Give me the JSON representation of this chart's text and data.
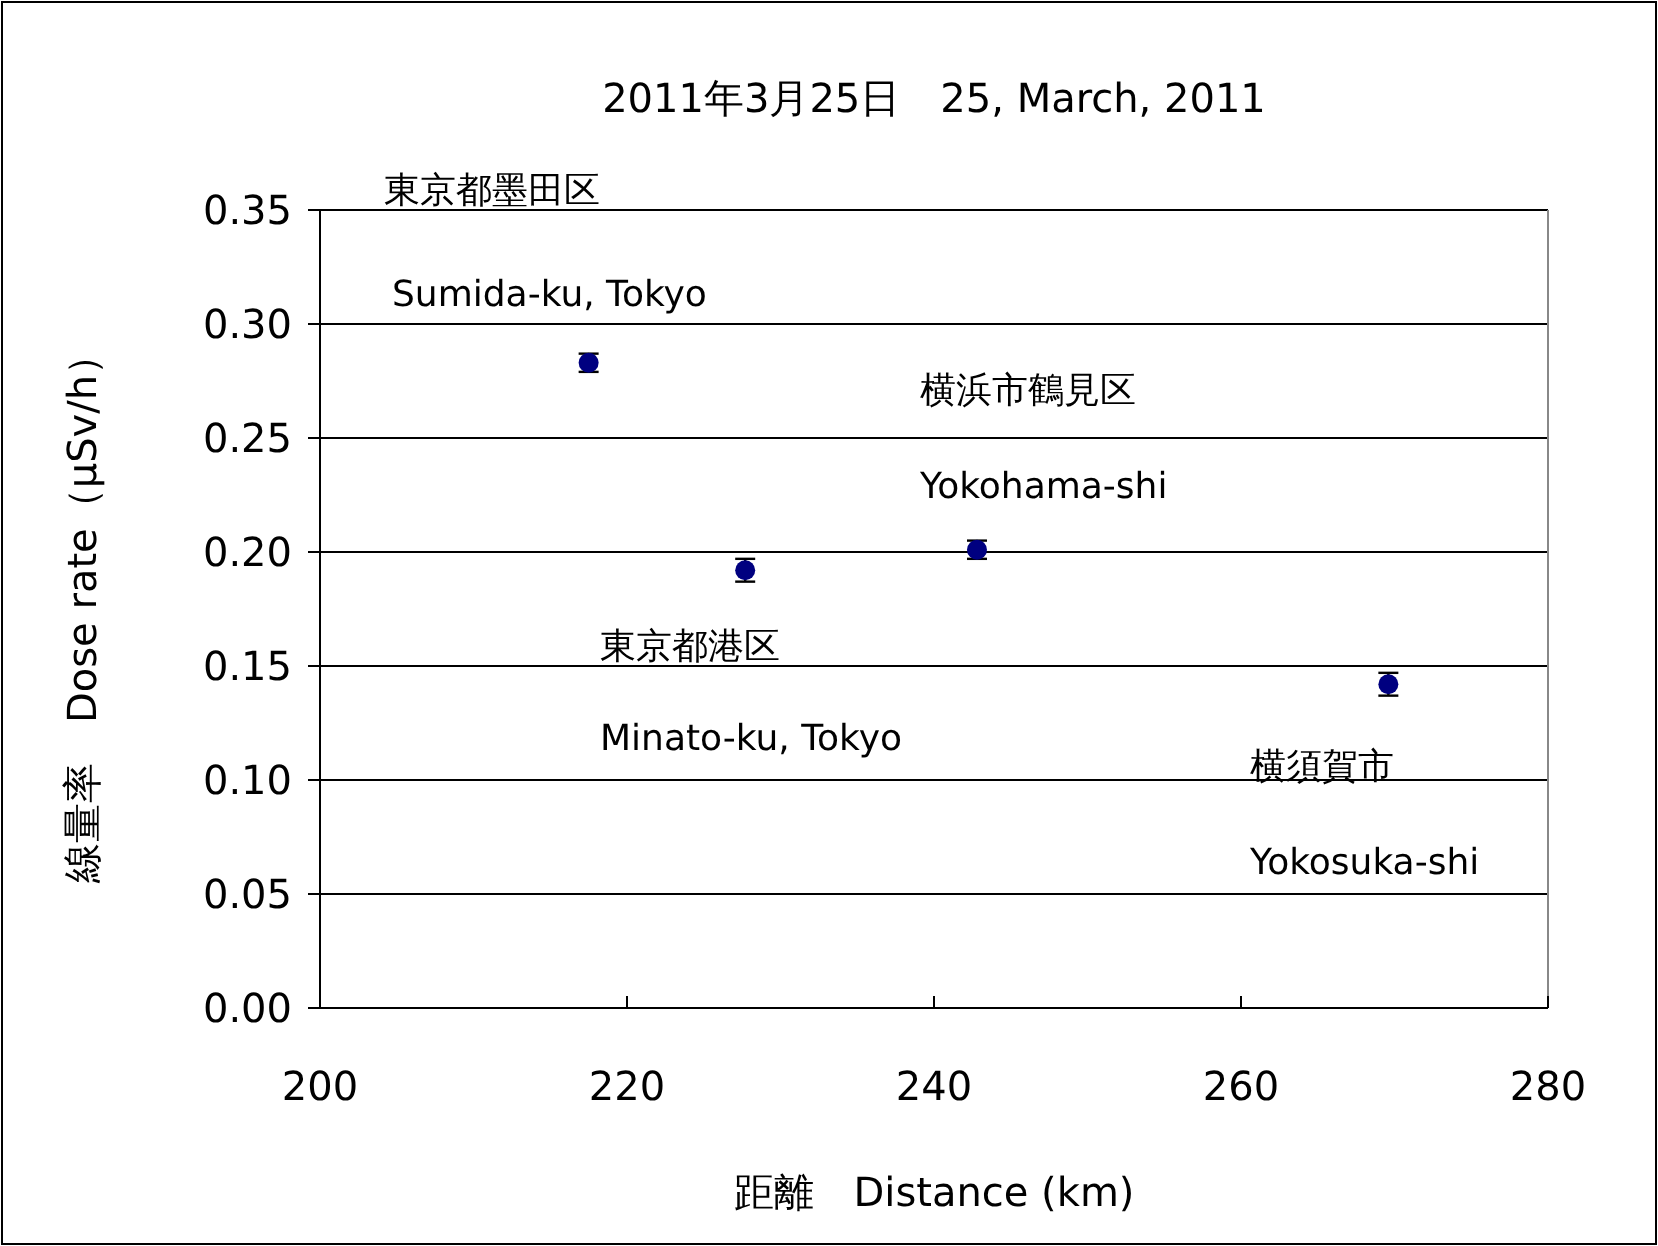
{
  "chart_data": {
    "type": "scatter",
    "title": "2011年3月25日　25, March, 2011",
    "xlabel": "距離　Distance (km)",
    "ylabel": "線量率　Dose rate（μSv/h）",
    "x": [
      217.5,
      227.7,
      242.8,
      269.6
    ],
    "values": [
      0.283,
      0.192,
      0.201,
      0.142
    ],
    "errors": [
      0.004,
      0.005,
      0.004,
      0.005
    ],
    "color": "#000080",
    "marker": "circle",
    "xlim": [
      200,
      280
    ],
    "xticks": [
      200,
      220,
      240,
      260,
      280
    ],
    "ylim": [
      0,
      0.35
    ],
    "yticks": [
      {
        "value": 0,
        "label": "0.00"
      },
      {
        "value": 0.05,
        "label": "0.05"
      },
      {
        "value": 0.1,
        "label": "0.10"
      },
      {
        "value": 0.15,
        "label": "0.15"
      },
      {
        "value": 0.2,
        "label": "0.20"
      },
      {
        "value": 0.25,
        "label": "0.25"
      },
      {
        "value": 0.3,
        "label": "0.30"
      },
      {
        "value": 0.35,
        "label": "0.35"
      }
    ],
    "grid": "y",
    "annotations": [
      "東京都墨田区",
      "Sumida-ku, Tokyo",
      "横浜市鶴見区",
      "Yokohama-shi",
      "東京都港区",
      "Minato-ku, Tokyo",
      "横須賀市",
      "Yokosuka-shi"
    ]
  }
}
